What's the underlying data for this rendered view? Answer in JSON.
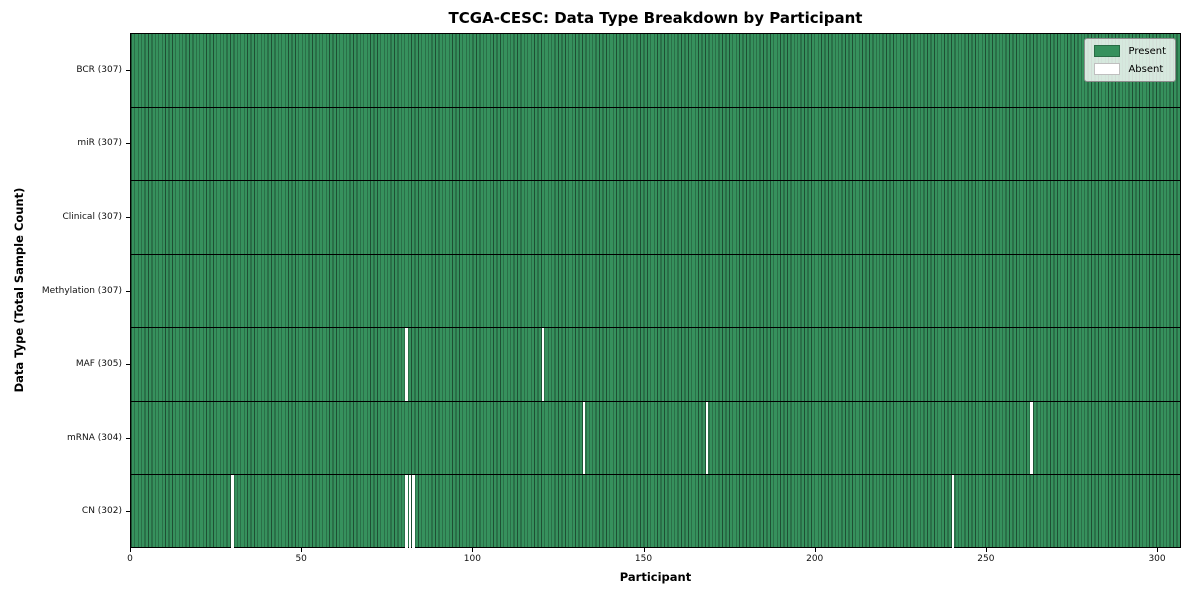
{
  "chart_data": {
    "type": "heatmap",
    "title": "TCGA-CESC: Data Type Breakdown by Participant",
    "xlabel": "Participant",
    "ylabel": "Data Type (Total Sample Count)",
    "n_participants": 307,
    "x_ticks": [
      0,
      50,
      100,
      150,
      200,
      250,
      300
    ],
    "xlim": [
      0,
      307
    ],
    "grid": false,
    "legend_position": "upper right",
    "legend": [
      {
        "label": "Present",
        "color": "#36915d"
      },
      {
        "label": "Absent",
        "color": "#ffffff"
      }
    ],
    "colors": {
      "present": "#36915d",
      "absent": "#ffffff",
      "cell_edge": "#1e5034",
      "row_separator": "#000000"
    },
    "rows": [
      {
        "label": "BCR (307)",
        "name": "BCR",
        "total": 307,
        "absent_participants": []
      },
      {
        "label": "miR (307)",
        "name": "miR",
        "total": 307,
        "absent_participants": []
      },
      {
        "label": "Clinical (307)",
        "name": "Clinical",
        "total": 307,
        "absent_participants": []
      },
      {
        "label": "Methylation (307)",
        "name": "Methylation",
        "total": 307,
        "absent_participants": []
      },
      {
        "label": "MAF (305)",
        "name": "MAF",
        "total": 305,
        "absent_participants": [
          80,
          120
        ]
      },
      {
        "label": "mRNA (304)",
        "name": "mRNA",
        "total": 304,
        "absent_participants": [
          132,
          168,
          263
        ]
      },
      {
        "label": "CN (302)",
        "name": "CN",
        "total": 302,
        "absent_participants": [
          29,
          80,
          81,
          82,
          240
        ]
      }
    ]
  }
}
